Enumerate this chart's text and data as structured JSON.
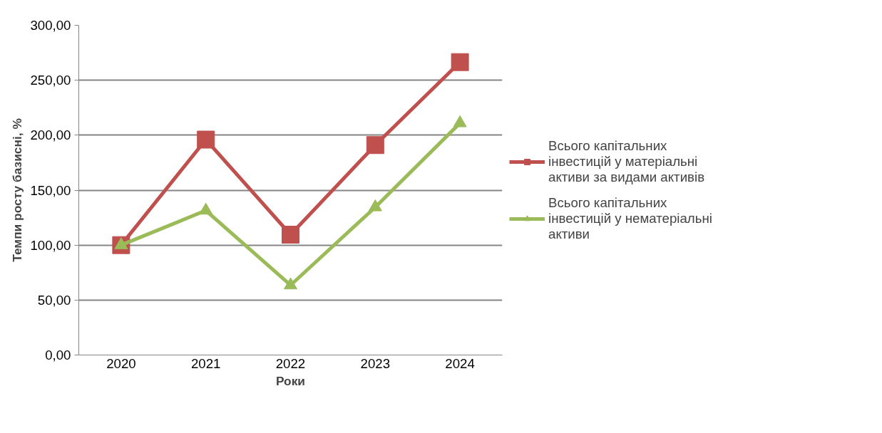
{
  "chart_data": {
    "type": "line",
    "xlabel": "Роки",
    "ylabel": "Темпи росту базисні, %",
    "categories": [
      "2020",
      "2021",
      "2022",
      "2023",
      "2024"
    ],
    "series": [
      {
        "name": "Всього капітальних інвестицій у матеріальні активи за видами активів",
        "color": "#c0504d",
        "marker": "square",
        "values": [
          100,
          196,
          109.5,
          191,
          266.5
        ]
      },
      {
        "name": "Всього капітальних інвестицій у нематеріальні активи",
        "color": "#9bbb59",
        "marker": "triangle",
        "values": [
          100,
          131.5,
          63.5,
          134.5,
          211
        ]
      }
    ],
    "ylim": [
      0,
      300
    ],
    "yticks": [
      {
        "value": 0,
        "label": "0,00"
      },
      {
        "value": 50,
        "label": "50,00"
      },
      {
        "value": 100,
        "label": "100,00"
      },
      {
        "value": 150,
        "label": "150,00"
      },
      {
        "value": 200,
        "label": "200,00"
      },
      {
        "value": 250,
        "label": "250,00"
      },
      {
        "value": 300,
        "label": "300,00"
      }
    ],
    "grid": "y",
    "legend": "right",
    "line_style": "solid"
  }
}
